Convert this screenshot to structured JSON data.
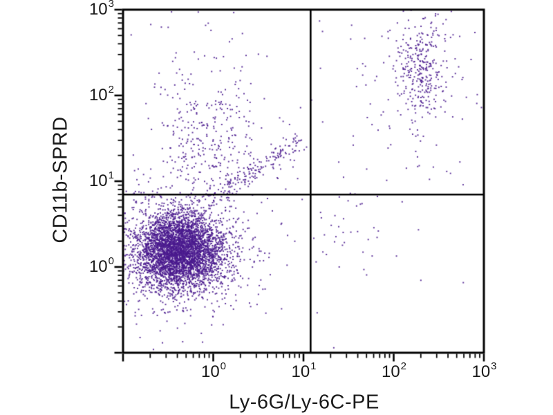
{
  "chart_data": {
    "type": "scatter",
    "subtype": "flow-cytometry-quadrant-dot-plot",
    "title": "",
    "xlabel": "Ly-6G/Ly-6C-PE",
    "ylabel": "CD11b-SPRD",
    "x_scale": "log",
    "y_scale": "log",
    "x_range": [
      0.1,
      1000
    ],
    "y_range": [
      0.1,
      1000
    ],
    "x_labeled_ticks": [
      1,
      10,
      100,
      1000
    ],
    "y_labeled_ticks": [
      1,
      10,
      100,
      1000
    ],
    "minor_ticks": "log subdivisions 2-9 each decade",
    "grid": false,
    "legend": false,
    "background": "#ffffff",
    "axis_color": "#000000",
    "dot_color": "#4a1a8e",
    "dot_alpha": 0.85,
    "quadrant_gates": {
      "x_value": 12,
      "y_value": 7
    },
    "random_seed": 42,
    "populations": [
      {
        "name": "double-negative-main-cluster",
        "shape": "gauss",
        "n": 4000,
        "cx": -0.38,
        "cy": 0.19,
        "sx": 0.24,
        "sy": 0.22,
        "center_x_value": 0.42,
        "center_y_value": 1.55
      },
      {
        "name": "double-negative-fringe",
        "shape": "gauss",
        "n": 700,
        "cx": -0.38,
        "cy": 0.19,
        "sx": 0.46,
        "sy": 0.42,
        "center_x_value": 0.42,
        "center_y_value": 1.55
      },
      {
        "name": "cd11b-positive-upper-left-smear",
        "shape": "gauss",
        "n": 330,
        "cx": -0.05,
        "cy": 1.55,
        "sx": 0.32,
        "sy": 0.5,
        "center_x_value": 0.9,
        "center_y_value": 35
      },
      {
        "name": "monocyte-diagonal-streak",
        "shape": "streak",
        "n": 170,
        "x1": -0.05,
        "y1": 0.8,
        "x2": 0.95,
        "y2": 1.45,
        "spread": 0.06,
        "from_xy_values": [
          0.9,
          6.3
        ],
        "to_xy_values": [
          8.9,
          28
        ]
      },
      {
        "name": "ly6g-positive-granulocyte-core",
        "shape": "gauss",
        "n": 230,
        "cx": 2.3,
        "cy": 2.33,
        "sx": 0.12,
        "sy": 0.27,
        "center_x_value": 200,
        "center_y_value": 214
      },
      {
        "name": "ly6g-positive-granulocyte-halo",
        "shape": "gauss",
        "n": 140,
        "cx": 2.28,
        "cy": 2.25,
        "sx": 0.32,
        "sy": 0.5,
        "center_x_value": 190,
        "center_y_value": 178
      },
      {
        "name": "lower-right-sparse",
        "shape": "gauss",
        "n": 38,
        "cx": 1.55,
        "cy": 0.45,
        "sx": 0.33,
        "sy": 0.27,
        "center_x_value": 35,
        "center_y_value": 2.8
      },
      {
        "name": "upper-region-noise",
        "shape": "uniform",
        "n": 45,
        "x_min": -1,
        "x_max": 3,
        "y_min": 0.8,
        "y_max": 3
      },
      {
        "name": "background-noise",
        "shape": "uniform",
        "n": 18,
        "x_min": -1,
        "x_max": 3,
        "y_min": -1,
        "y_max": 3
      }
    ]
  }
}
